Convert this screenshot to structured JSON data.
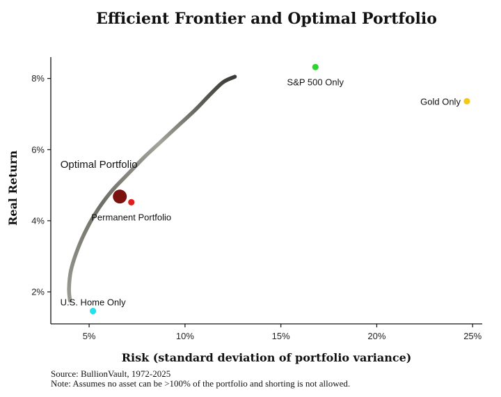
{
  "chart_data": {
    "type": "scatter",
    "title": "Efficient Frontier and Optimal Portfolio",
    "xlabel": "Risk (standard deviation of portfolio variance)",
    "ylabel": "Real Return",
    "xlim": [
      3.0,
      25.5
    ],
    "ylim": [
      1.1,
      8.6
    ],
    "x_ticks": [
      5,
      10,
      15,
      20,
      25
    ],
    "x_tick_labels": [
      "5%",
      "10%",
      "15%",
      "20%",
      "25%"
    ],
    "y_ticks": [
      2,
      4,
      6,
      8
    ],
    "y_tick_labels": [
      "2%",
      "4%",
      "6%",
      "8%"
    ],
    "grid": false,
    "frontier": {
      "x": [
        4.0,
        3.95,
        4.05,
        4.4,
        4.9,
        5.5,
        6.2,
        7.0,
        7.9,
        8.8,
        9.7,
        10.6,
        11.4,
        12.0,
        12.6
      ],
      "y": [
        1.75,
        2.1,
        2.6,
        3.2,
        3.8,
        4.35,
        4.85,
        5.3,
        5.8,
        6.25,
        6.7,
        7.15,
        7.6,
        7.9,
        8.05
      ],
      "color": "#8a8a80"
    },
    "points": [
      {
        "label": "S&P 500 Only",
        "x": 16.8,
        "y": 8.32,
        "color": "#2fd52f",
        "label_pos": "below"
      },
      {
        "label": "Gold Only",
        "x": 24.7,
        "y": 7.36,
        "color": "#f4c818",
        "label_pos": "left"
      },
      {
        "label": "Permanent Portfolio",
        "x": 7.2,
        "y": 4.52,
        "color": "#e01e1e",
        "label_pos": "below"
      },
      {
        "label": "U.S. Home Only",
        "x": 5.2,
        "y": 1.46,
        "color": "#22e0ee",
        "label_pos": "above"
      }
    ],
    "optimal": {
      "label": "Optimal Portfolio",
      "x": 6.6,
      "y": 4.68,
      "color": "#7a1210"
    }
  },
  "source_note": "Source: BullionVault, 1972-2025",
  "assumption_note": "Note: Assumes no asset can be >100% of the portfolio and shorting is not allowed."
}
